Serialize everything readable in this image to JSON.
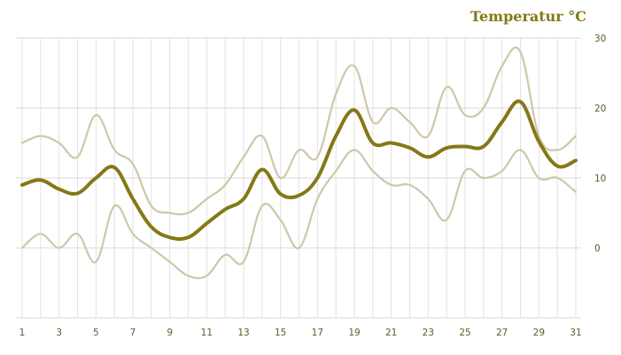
{
  "chart_data": {
    "type": "line",
    "title": "Temperatur °C",
    "x": [
      1,
      2,
      3,
      4,
      5,
      6,
      7,
      8,
      9,
      10,
      11,
      12,
      13,
      14,
      15,
      16,
      17,
      18,
      19,
      20,
      21,
      22,
      23,
      24,
      25,
      26,
      27,
      28,
      29,
      30,
      31
    ],
    "x_tick_labels": [
      "1",
      "3",
      "5",
      "7",
      "9",
      "11",
      "13",
      "15",
      "17",
      "19",
      "21",
      "23",
      "25",
      "27",
      "29",
      "31"
    ],
    "y_tick_labels": [
      "30",
      "20",
      "10",
      "0"
    ],
    "ylim": [
      -10,
      30
    ],
    "grid": true,
    "series": [
      {
        "role": "max",
        "color": "#cfc7aa",
        "values": [
          15,
          16,
          15,
          13,
          19,
          14,
          12,
          6,
          5,
          5,
          7,
          9,
          13,
          16,
          10,
          14,
          13,
          22,
          26,
          18,
          20,
          18,
          16,
          23,
          19,
          20,
          26,
          28,
          16,
          14,
          16
        ]
      },
      {
        "role": "mean",
        "color": "#857817",
        "values": [
          9,
          9.7,
          8.4,
          7.8,
          10,
          11.5,
          7,
          3,
          1.5,
          1.5,
          3.5,
          5.5,
          7,
          11.2,
          7.7,
          7.5,
          10,
          16,
          19.7,
          15,
          15,
          14.3,
          13,
          14.3,
          14.5,
          14.5,
          18,
          20.9,
          15.2,
          11.7,
          12.5
        ]
      },
      {
        "role": "min",
        "color": "#cfc7aa",
        "values": [
          0,
          2,
          0,
          2,
          -2,
          6,
          2,
          0,
          -2,
          -4,
          -4,
          -1,
          -2,
          6,
          4,
          0,
          7,
          11,
          14,
          11,
          9,
          9,
          7,
          4,
          11,
          10,
          11,
          14,
          10,
          10,
          8
        ]
      }
    ]
  }
}
